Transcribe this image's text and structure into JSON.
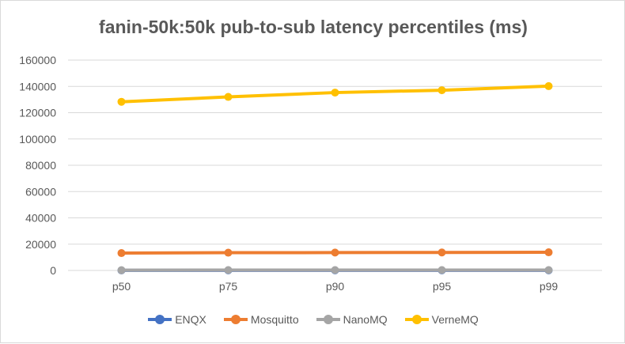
{
  "chart_data": {
    "type": "line",
    "title": "fanin-50k:50k pub-to-sub latency percentiles (ms)",
    "categories": [
      "p50",
      "p75",
      "p90",
      "p95",
      "p99"
    ],
    "ylim": [
      0,
      160000
    ],
    "yticks": [
      "0",
      "20000",
      "40000",
      "60000",
      "80000",
      "100000",
      "120000",
      "140000",
      "160000"
    ],
    "grid": true,
    "legend": "bottom",
    "series": [
      {
        "name": "ENQX",
        "color": "#4472C4",
        "values": [
          50,
          60,
          70,
          80,
          100
        ]
      },
      {
        "name": "Mosquitto",
        "color": "#ED7D31",
        "values": [
          13200,
          13500,
          13600,
          13700,
          13800
        ]
      },
      {
        "name": "NanoMQ",
        "color": "#A5A5A5",
        "values": [
          200,
          300,
          300,
          300,
          300
        ]
      },
      {
        "name": "VerneMQ",
        "color": "#FFC000",
        "values": [
          128300,
          132000,
          135300,
          137100,
          140200
        ]
      }
    ]
  }
}
